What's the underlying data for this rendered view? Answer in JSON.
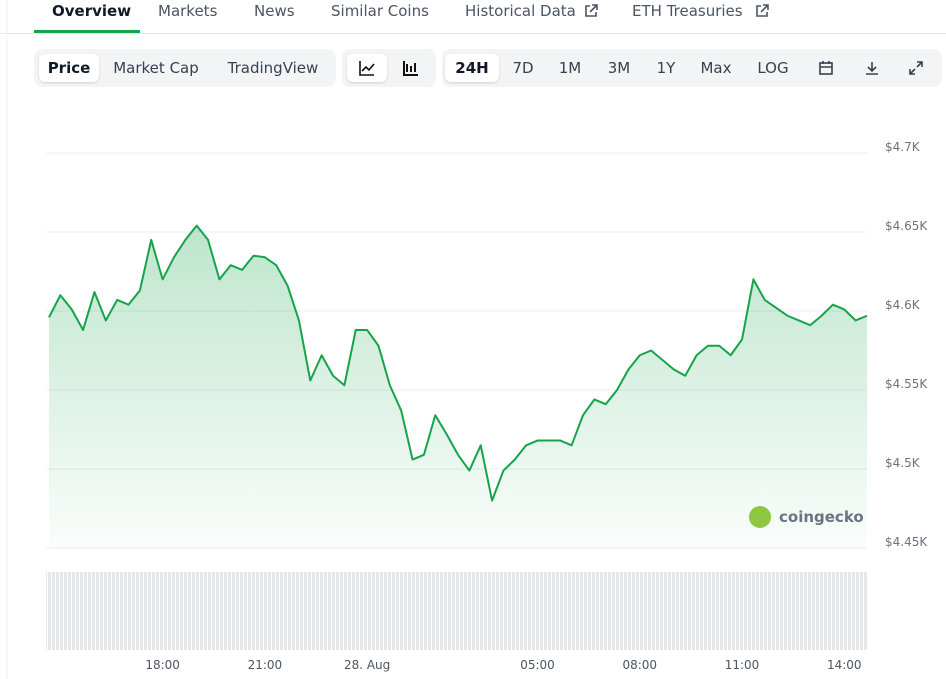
{
  "tabs": [
    "Overview",
    "Markets",
    "News",
    "Similar Coins",
    "Historical Data",
    "ETH Treasuries"
  ],
  "toolbar": {
    "views": [
      "Price",
      "Market Cap",
      "TradingView"
    ],
    "ranges": [
      "24H",
      "7D",
      "1M",
      "3M",
      "1Y",
      "Max",
      "LOG"
    ]
  },
  "chart_data": {
    "type": "line",
    "annotation": "coingecko",
    "categories": [
      null,
      null,
      null,
      null,
      null,
      null,
      null,
      null,
      null,
      null,
      "18:00",
      null,
      null,
      null,
      null,
      null,
      null,
      null,
      null,
      "21:00",
      null,
      null,
      null,
      null,
      null,
      null,
      null,
      null,
      "28. Aug",
      null,
      null,
      null,
      null,
      null,
      null,
      null,
      null,
      null,
      null,
      null,
      null,
      null,
      null,
      "05:00",
      null,
      null,
      null,
      null,
      null,
      null,
      null,
      null,
      "08:00",
      null,
      null,
      null,
      null,
      null,
      null,
      null,
      null,
      "11:00",
      null,
      null,
      null,
      null,
      null,
      null,
      null,
      null,
      "14:00",
      null,
      null
    ],
    "series": [
      {
        "color": "#16a34a",
        "values": [
          4596,
          4610,
          4601,
          4588,
          4612,
          4594,
          4607,
          4604,
          4613,
          4645,
          4620,
          4634,
          4645,
          4654,
          4645,
          4620,
          4629,
          4626,
          4635,
          4634,
          4629,
          4616,
          4594,
          4556,
          4572,
          4559,
          4553,
          4588,
          4588,
          4578,
          4553,
          4537,
          4506,
          4509,
          4534,
          4522,
          4509,
          4499,
          4515,
          4480,
          4499,
          4506,
          4515,
          4518,
          4518,
          4518,
          4515,
          4534,
          4544,
          4541,
          4550,
          4563,
          4572,
          4575,
          4569,
          4563,
          4559,
          4572,
          4578,
          4578,
          4572,
          4582,
          4620,
          4607,
          4602,
          4597,
          4594,
          4591,
          4597,
          4604,
          4601,
          4594,
          4597
        ]
      }
    ],
    "ylim": [
      4450,
      4700
    ],
    "yticks": [
      {
        "value": 4450,
        "label": "$4.45K"
      },
      {
        "value": 4500,
        "label": "$4.5K"
      },
      {
        "value": 4550,
        "label": "$4.55K"
      },
      {
        "value": 4600,
        "label": "$4.6K"
      },
      {
        "value": 4650,
        "label": "$4.65K"
      },
      {
        "value": 4700,
        "label": "$4.7K"
      }
    ],
    "grid": true
  }
}
